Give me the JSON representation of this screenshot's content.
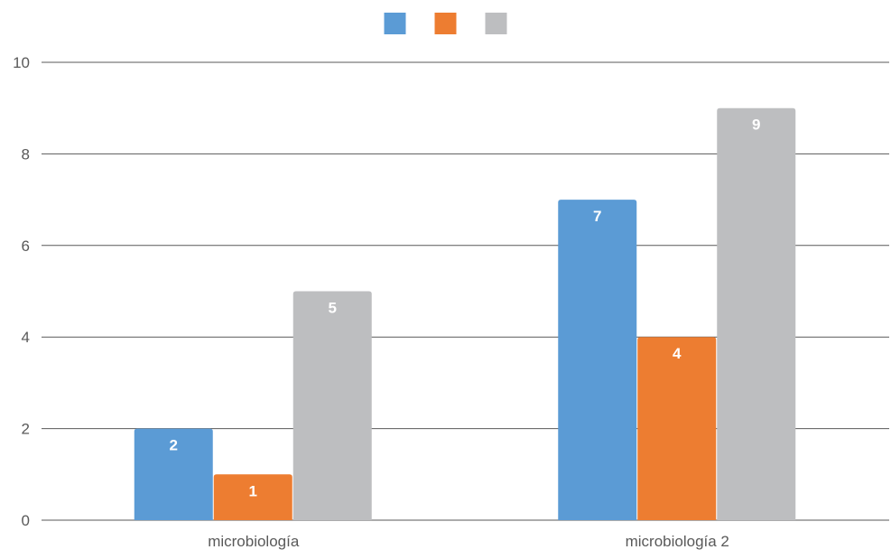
{
  "chart_data": {
    "type": "bar",
    "categories": [
      "microbiología",
      "microbiología 2"
    ],
    "series": [
      {
        "values": [
          2,
          7
        ],
        "color": "#5B9BD5"
      },
      {
        "values": [
          1,
          4
        ],
        "color": "#ED7D31"
      },
      {
        "values": [
          5,
          9
        ],
        "color": "#BDBEC0"
      }
    ],
    "ylim": [
      0,
      10
    ],
    "yticks": [
      0,
      2,
      4,
      6,
      8,
      10
    ],
    "grid": true,
    "legend": "top-center",
    "data_labels": true,
    "data_label_color": "#ffffff",
    "gridline_color": "#595959",
    "axis_text_color": "#595959"
  }
}
